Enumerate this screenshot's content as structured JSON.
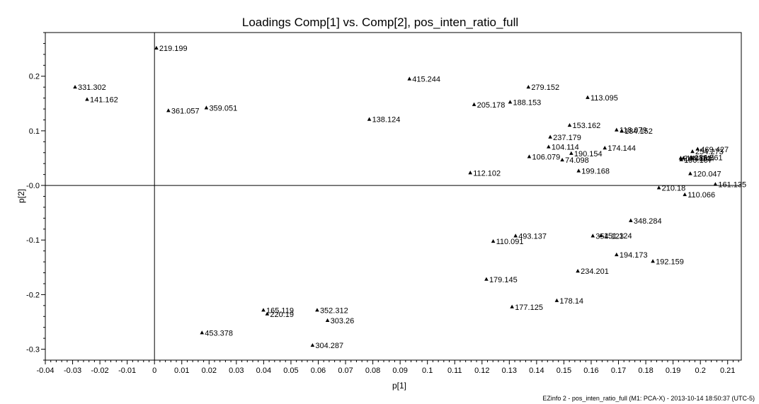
{
  "chart_data": {
    "type": "scatter",
    "title": "Loadings Comp[1] vs. Comp[2], pos_inten_ratio_full",
    "xlabel": "p[1]",
    "ylabel": "p[2]",
    "xlim": [
      -0.04,
      0.215
    ],
    "ylim": [
      -0.32,
      0.28
    ],
    "xticks": [
      -0.04,
      -0.03,
      -0.02,
      -0.01,
      0,
      0.01,
      0.02,
      0.03,
      0.04,
      0.05,
      0.06,
      0.07,
      0.08,
      0.09,
      0.1,
      0.11,
      0.12,
      0.13,
      0.14,
      0.15,
      0.16,
      0.17,
      0.18,
      0.19,
      0.2,
      0.21
    ],
    "xtick_labels": [
      "-0.04",
      "-0.03",
      "-0.02",
      "-0.01",
      "0",
      "0.01",
      "0.02",
      "0.03",
      "0.04",
      "0.05",
      "0.06",
      "0.07",
      "0.08",
      "0.09",
      "0.1",
      "0.11",
      "0.12",
      "0.13",
      "0.14",
      "0.15",
      "0.16",
      "0.17",
      "0.18",
      "0.19",
      "0.2",
      "0.21"
    ],
    "yticks": [
      -0.3,
      -0.2,
      -0.1,
      0,
      0.1,
      0.2
    ],
    "ytick_labels": [
      "-0.3",
      "-0.2",
      "-0.1",
      "-0.0",
      "0.1",
      "0.2"
    ],
    "grid": false,
    "points": [
      {
        "x": 0.0007,
        "y": 0.2515,
        "label": "219.199"
      },
      {
        "x": -0.0291,
        "y": 0.18,
        "label": "331.302"
      },
      {
        "x": -0.0247,
        "y": 0.1575,
        "label": "141.162"
      },
      {
        "x": 0.0051,
        "y": 0.137,
        "label": "361.057"
      },
      {
        "x": 0.019,
        "y": 0.142,
        "label": "359.051"
      },
      {
        "x": 0.0787,
        "y": 0.121,
        "label": "138.124"
      },
      {
        "x": 0.0934,
        "y": 0.195,
        "label": "415.244"
      },
      {
        "x": 0.1171,
        "y": 0.148,
        "label": "205.178"
      },
      {
        "x": 0.1303,
        "y": 0.1525,
        "label": "188.153"
      },
      {
        "x": 0.137,
        "y": 0.18,
        "label": "279.152"
      },
      {
        "x": 0.1587,
        "y": 0.161,
        "label": "113.095"
      },
      {
        "x": 0.1521,
        "y": 0.11,
        "label": "153.162"
      },
      {
        "x": 0.1693,
        "y": 0.1015,
        "label": "118.079"
      },
      {
        "x": 0.1712,
        "y": 0.1,
        "label": "184.152"
      },
      {
        "x": 0.145,
        "y": 0.0885,
        "label": "237.179"
      },
      {
        "x": 0.1444,
        "y": 0.0705,
        "label": "104.114"
      },
      {
        "x": 0.165,
        "y": 0.0685,
        "label": "174.144"
      },
      {
        "x": 0.1527,
        "y": 0.0585,
        "label": "190.154"
      },
      {
        "x": 0.1373,
        "y": 0.0525,
        "label": "106.079"
      },
      {
        "x": 0.1494,
        "y": 0.0465,
        "label": "74.098"
      },
      {
        "x": 0.1554,
        "y": 0.0265,
        "label": "199.168"
      },
      {
        "x": 0.1157,
        "y": 0.023,
        "label": "112.102"
      },
      {
        "x": 0.199,
        "y": 0.0665,
        "label": "469.427"
      },
      {
        "x": 0.1971,
        "y": 0.062,
        "label": "254.273"
      },
      {
        "x": 0.1928,
        "y": 0.05,
        "label": "244.181"
      },
      {
        "x": 0.1938,
        "y": 0.05,
        "label": "144.044"
      },
      {
        "x": 0.1968,
        "y": 0.051,
        "label": "186.561"
      },
      {
        "x": 0.193,
        "y": 0.047,
        "label": "190.107"
      },
      {
        "x": 0.1963,
        "y": 0.0215,
        "label": "120.047"
      },
      {
        "x": 0.2055,
        "y": 0.002,
        "label": "161.135"
      },
      {
        "x": 0.1848,
        "y": -0.0045,
        "label": "210.18"
      },
      {
        "x": 0.1943,
        "y": -0.017,
        "label": "110.066"
      },
      {
        "x": 0.1745,
        "y": -0.0645,
        "label": "348.284"
      },
      {
        "x": 0.1606,
        "y": -0.0925,
        "label": "354.123"
      },
      {
        "x": 0.1636,
        "y": -0.092,
        "label": "151.124"
      },
      {
        "x": 0.1323,
        "y": -0.0925,
        "label": "493.137"
      },
      {
        "x": 0.1241,
        "y": -0.1025,
        "label": "110.091"
      },
      {
        "x": 0.1693,
        "y": -0.127,
        "label": "194.173"
      },
      {
        "x": 0.1826,
        "y": -0.139,
        "label": "192.159"
      },
      {
        "x": 0.1551,
        "y": -0.157,
        "label": "234.201"
      },
      {
        "x": 0.1216,
        "y": -0.172,
        "label": "179.145"
      },
      {
        "x": 0.1474,
        "y": -0.211,
        "label": "178.14"
      },
      {
        "x": 0.131,
        "y": -0.2225,
        "label": "177.125"
      },
      {
        "x": 0.0399,
        "y": -0.2285,
        "label": "165.119"
      },
      {
        "x": 0.0413,
        "y": -0.2355,
        "label": "220.19"
      },
      {
        "x": 0.0596,
        "y": -0.2285,
        "label": "352.312"
      },
      {
        "x": 0.0634,
        "y": -0.2475,
        "label": "303.26"
      },
      {
        "x": 0.0174,
        "y": -0.27,
        "label": "453.378"
      },
      {
        "x": 0.0579,
        "y": -0.293,
        "label": "304.287"
      }
    ]
  },
  "footer": "EZinfo 2 - pos_inten_ratio_full (M1: PCA-X) - 2013-10-14 18:50:37 (UTC-5)"
}
